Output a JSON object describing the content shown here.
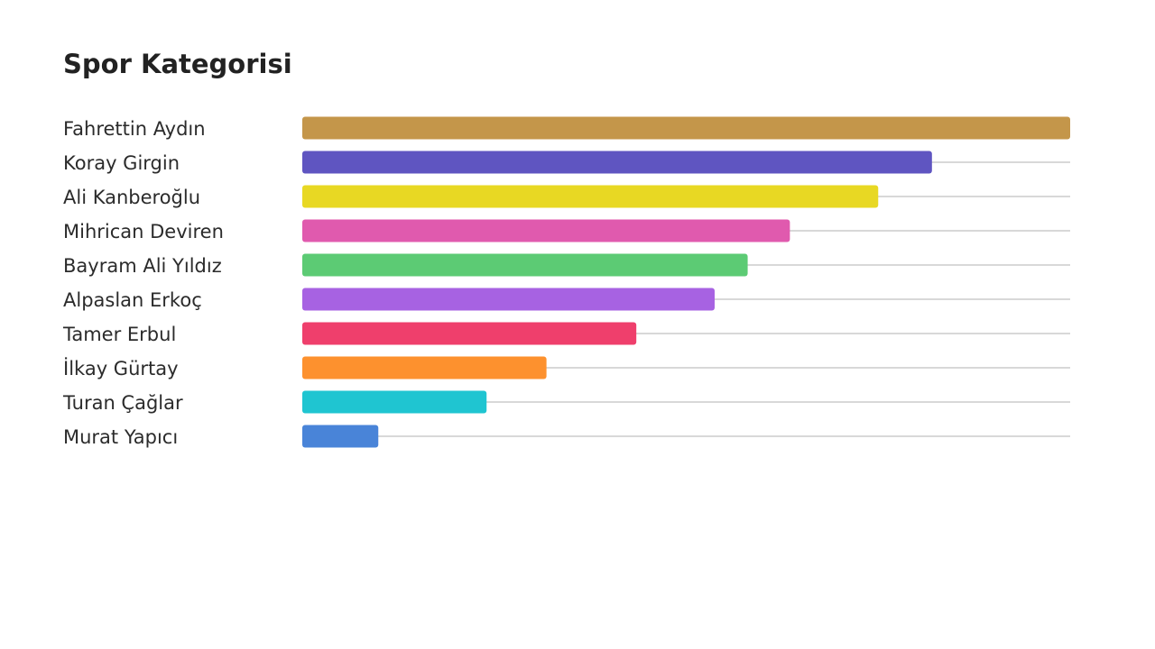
{
  "chart_data": {
    "type": "bar",
    "orientation": "horizontal",
    "title": "Spor Kategorisi",
    "xlabel": "",
    "ylabel": "",
    "grid": false,
    "value_labels_shown": false,
    "xlim": [
      0,
      100
    ],
    "categories": [
      "Fahrettin Aydın",
      "Koray Girgin",
      "Ali Kanberoğlu",
      "Mihrican Deviren",
      "Bayram Ali Yıldız",
      "Alpaslan Erkoç",
      "Tamer Erbul",
      "İlkay Gürtay",
      "Turan Çağlar",
      "Murat Yapıcı"
    ],
    "values": [
      100,
      82,
      75,
      63.5,
      58,
      53.7,
      43.5,
      31.8,
      24,
      9.9
    ],
    "colors": [
      "#c4964a",
      "#5f55c1",
      "#e8d823",
      "#e05aae",
      "#5ccb74",
      "#a762e2",
      "#ef3f6c",
      "#fd912e",
      "#1fc5d1",
      "#4984d8"
    ],
    "track_color": "#cccccc"
  }
}
